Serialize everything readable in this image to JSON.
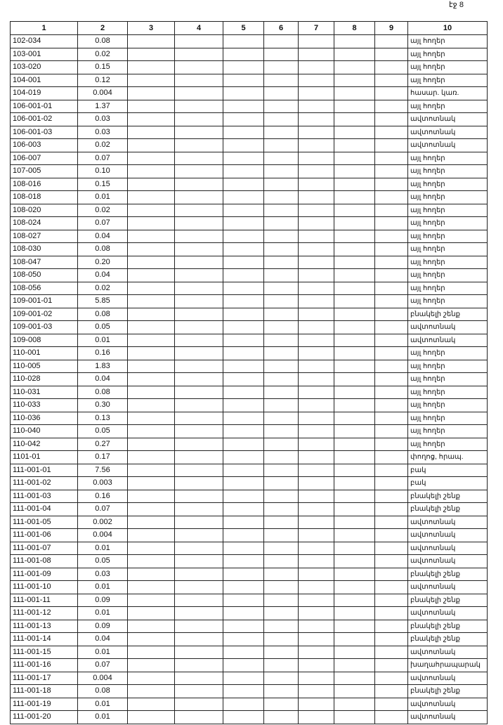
{
  "header": {
    "page_label": "էջ 8"
  },
  "table": {
    "headers": [
      "1",
      "2",
      "3",
      "4",
      "5",
      "6",
      "7",
      "8",
      "9",
      "10"
    ],
    "rows": [
      [
        "102-034",
        "0.08",
        "այլ հողեր"
      ],
      [
        "103-001",
        "0.02",
        "այլ հողեր"
      ],
      [
        "103-020",
        "0.15",
        "այլ հողեր"
      ],
      [
        "104-001",
        "0.12",
        "այլ հողեր"
      ],
      [
        "104-019",
        "0.004",
        "հասար. կառ."
      ],
      [
        "106-001-01",
        "1.37",
        "այլ հողեր"
      ],
      [
        "106-001-02",
        "0.03",
        "ավտոտնակ"
      ],
      [
        "106-001-03",
        "0.03",
        "ավտոտնակ"
      ],
      [
        "106-003",
        "0.02",
        "ավտոտնակ"
      ],
      [
        "106-007",
        "0.07",
        "այլ հողեր"
      ],
      [
        "107-005",
        "0.10",
        "այլ հողեր"
      ],
      [
        "108-016",
        "0.15",
        "այլ հողեր"
      ],
      [
        "108-018",
        "0.01",
        "այլ հողեր"
      ],
      [
        "108-020",
        "0.02",
        "այլ հողեր"
      ],
      [
        "108-024",
        "0.07",
        "այլ հողեր"
      ],
      [
        "108-027",
        "0.04",
        "այլ հողեր"
      ],
      [
        "108-030",
        "0.08",
        "այլ հողեր"
      ],
      [
        "108-047",
        "0.20",
        "այլ հողեր"
      ],
      [
        "108-050",
        "0.04",
        "այլ հողեր"
      ],
      [
        "108-056",
        "0.02",
        "այլ հողեր"
      ],
      [
        "109-001-01",
        "5.85",
        "այլ հողեր"
      ],
      [
        "109-001-02",
        "0.08",
        "բնակելի շենք"
      ],
      [
        "109-001-03",
        "0.05",
        "ավտոտնակ"
      ],
      [
        "109-008",
        "0.01",
        "ավտոտնակ"
      ],
      [
        "110-001",
        "0.16",
        "այլ հողեր"
      ],
      [
        "110-005",
        "1.83",
        "այլ հողեր"
      ],
      [
        "110-028",
        "0.04",
        "այլ հողեր"
      ],
      [
        "110-031",
        "0.08",
        "այլ հողեր"
      ],
      [
        "110-033",
        "0.30",
        "այլ հողեր"
      ],
      [
        "110-036",
        "0.13",
        "այլ հողեր"
      ],
      [
        "110-040",
        "0.05",
        "այլ հողեր"
      ],
      [
        "110-042",
        "0.27",
        "այլ հողեր"
      ],
      [
        "1101-01",
        "0.17",
        "փողոց, հրապ."
      ],
      [
        "111-001-01",
        "7.56",
        "բակ"
      ],
      [
        "111-001-02",
        "0.003",
        "բակ"
      ],
      [
        "111-001-03",
        "0.16",
        "բնակելի շենք"
      ],
      [
        "111-001-04",
        "0.07",
        "բնակելի շենք"
      ],
      [
        "111-001-05",
        "0.002",
        "ավտոտնակ"
      ],
      [
        "111-001-06",
        "0.004",
        "ավտոտնակ"
      ],
      [
        "111-001-07",
        "0.01",
        "ավտոտնակ"
      ],
      [
        "111-001-08",
        "0.05",
        "ավտոտնակ"
      ],
      [
        "111-001-09",
        "0.03",
        "բնակելի շենք"
      ],
      [
        "111-001-10",
        "0.01",
        "ավտոտնակ"
      ],
      [
        "111-001-11",
        "0.09",
        "բնակելի շենք"
      ],
      [
        "111-001-12",
        "0.01",
        "ավտոտնակ"
      ],
      [
        "111-001-13",
        "0.09",
        "բնակելի շենք"
      ],
      [
        "111-001-14",
        "0.04",
        "բնակելի շենք"
      ],
      [
        "111-001-15",
        "0.01",
        "ավտոտնակ"
      ],
      [
        "111-001-16",
        "0.07",
        "խաղահրապարակ"
      ],
      [
        "111-001-17",
        "0.004",
        "ավտոտնակ"
      ],
      [
        "111-001-18",
        "0.08",
        "բնակելի շենք"
      ],
      [
        "111-001-19",
        "0.01",
        "ավտոտնակ"
      ],
      [
        "111-001-20",
        "0.01",
        "ավտոտնակ"
      ]
    ]
  }
}
